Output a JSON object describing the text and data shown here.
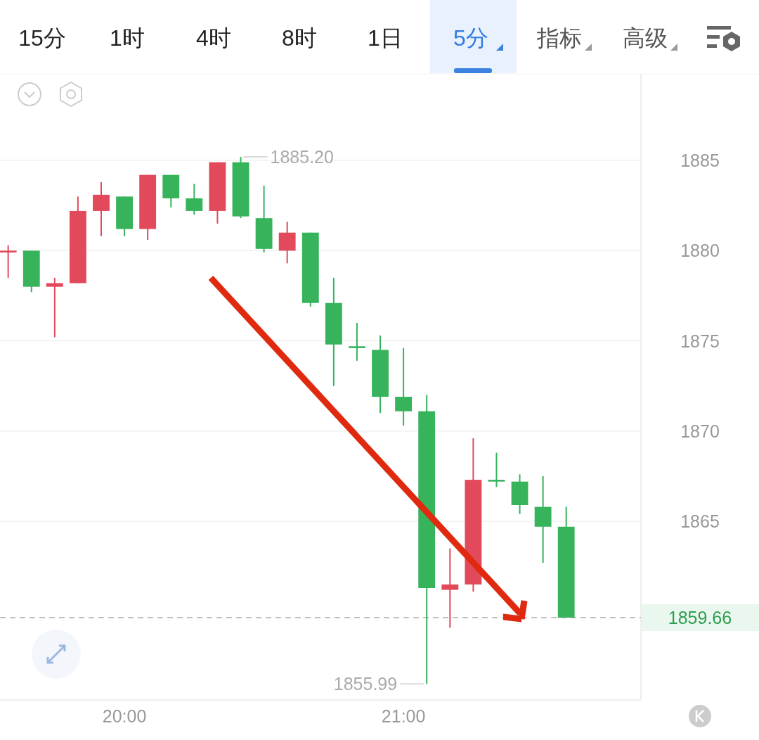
{
  "chart_data": {
    "type": "candlestick",
    "annotations": [
      "15分",
      "1时",
      "4时",
      "8时",
      "1日",
      "5分",
      "指标",
      "高级",
      {
        "text": "1885.20",
        "x": 20.4167,
        "y": 1885.2
      },
      {
        "text": "1855.99",
        "x": 21.0833,
        "y": 1855.99
      }
    ],
    "x": [
      19.5833,
      19.6667,
      19.75,
      19.8333,
      19.9167,
      20.0,
      20.0833,
      20.1667,
      20.25,
      20.3333,
      20.4167,
      20.5,
      20.5833,
      20.6667,
      20.75,
      20.8333,
      20.9167,
      21.0,
      21.0833,
      21.1667,
      21.25,
      21.3333,
      21.4167,
      21.5,
      21.5833
    ],
    "ohlc": [
      [
        1879.9,
        1880.3,
        1878.5,
        1880.0
      ],
      [
        1880.0,
        1880.0,
        1877.7,
        1878.0
      ],
      [
        1878.0,
        1878.5,
        1875.2,
        1878.2
      ],
      [
        1878.2,
        1883.0,
        1878.2,
        1882.2
      ],
      [
        1882.2,
        1883.8,
        1880.8,
        1883.1
      ],
      [
        1883.0,
        1883.0,
        1880.8,
        1881.2
      ],
      [
        1881.2,
        1884.2,
        1880.6,
        1884.2
      ],
      [
        1884.2,
        1884.2,
        1882.4,
        1882.9
      ],
      [
        1882.9,
        1883.7,
        1882.0,
        1882.2
      ],
      [
        1882.2,
        1884.9,
        1881.5,
        1884.9
      ],
      [
        1884.9,
        1885.2,
        1881.8,
        1881.9
      ],
      [
        1881.8,
        1883.6,
        1879.9,
        1880.1
      ],
      [
        1880.0,
        1881.6,
        1879.3,
        1881.0
      ],
      [
        1881.0,
        1881.0,
        1876.9,
        1877.1
      ],
      [
        1877.1,
        1878.5,
        1872.5,
        1874.8
      ],
      [
        1874.7,
        1876.0,
        1873.9,
        1874.6
      ],
      [
        1874.5,
        1875.3,
        1871.0,
        1871.9
      ],
      [
        1871.9,
        1874.6,
        1870.3,
        1871.1
      ],
      [
        1871.1,
        1872.0,
        1855.99,
        1861.3
      ],
      [
        1861.2,
        1863.5,
        1859.1,
        1861.5
      ],
      [
        1861.5,
        1869.6,
        1861.1,
        1867.3
      ],
      [
        1867.3,
        1868.8,
        1866.9,
        1867.2
      ],
      [
        1867.2,
        1867.6,
        1865.4,
        1865.9
      ],
      [
        1865.8,
        1867.5,
        1862.7,
        1864.7
      ],
      [
        1864.7,
        1865.8,
        1859.66,
        1859.66
      ]
    ],
    "colors": [
      "#e2495a",
      "#36b35b",
      "#e2495a",
      "#e2495a",
      "#e2495a",
      "#36b35b",
      "#e2495a",
      "#36b35b",
      "#36b35b",
      "#e2495a",
      "#36b35b",
      "#36b35b",
      "#e2495a",
      "#36b35b",
      "#36b35b",
      "#36b35b",
      "#36b35b",
      "#36b35b",
      "#36b35b",
      "#e2495a",
      "#e2495a",
      "#36b35b",
      "#36b35b",
      "#36b35b",
      "#36b35b"
    ],
    "xlim": [
      19.554,
      21.851
    ],
    "ylim": [
      1855.1,
      1889.8
    ],
    "xticks": [
      {
        "value": 20,
        "label": "20:00"
      },
      {
        "value": 21,
        "label": "21:00"
      }
    ],
    "yticks": [
      1865,
      1870,
      1875,
      1880,
      1885
    ],
    "grid": "y",
    "ref_lines": [
      {
        "axis": "y",
        "value": 1859.66,
        "label": "1859.66",
        "color": "#aaaaaa",
        "line_style": "dashed"
      }
    ]
  }
}
